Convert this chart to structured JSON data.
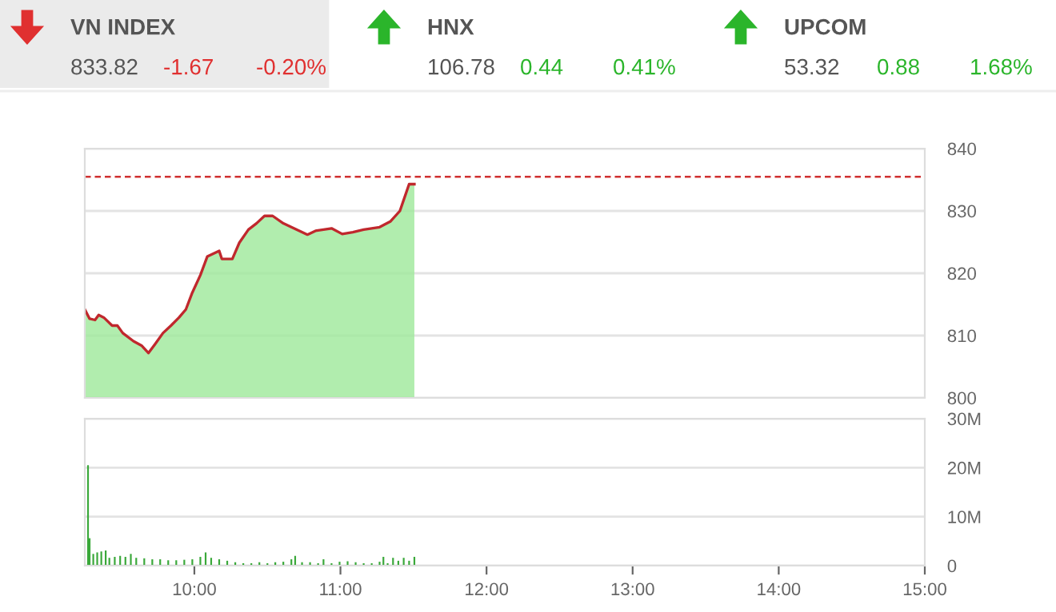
{
  "chart_data": [
    {
      "type": "other",
      "title": "VN INDEX",
      "annotations": [
        "833.82",
        "-1.67",
        "-0.20%"
      ],
      "colors": [
        "#555555",
        "#e03030",
        "#e03030"
      ],
      "color": "#ebebeb"
    },
    {
      "type": "other",
      "title": "HNX",
      "annotations": [
        "106.78",
        "0.44",
        "0.41%"
      ],
      "colors": [
        "#555555",
        "#2bb52b",
        "#2bb52b"
      ]
    },
    {
      "type": "other",
      "title": "UPCOM",
      "annotations": [
        "53.32",
        "0.88",
        "1.68%"
      ],
      "colors": [
        "#555555",
        "#2bb52b",
        "#2bb52b"
      ]
    },
    {
      "type": "area",
      "xlim": [
        9.25,
        15
      ],
      "ylim": [
        800,
        840
      ],
      "yticks": [
        800,
        810,
        820,
        830,
        840
      ],
      "grid": "y",
      "tick_labels": "y",
      "ref_lines": [
        {
          "axis": "y",
          "value": 835.49,
          "color": "#d03030",
          "line_style": "dashed"
        }
      ],
      "series": [
        {
          "color": "#9ee89a",
          "x": [
            9.25,
            9.283,
            9.32,
            9.345,
            9.38,
            9.437,
            9.473,
            9.51,
            9.583,
            9.638,
            9.686,
            9.73,
            9.785,
            9.84,
            9.895,
            9.942,
            9.986,
            10.041,
            10.089,
            10.17,
            10.188,
            10.26,
            10.308,
            10.37,
            10.425,
            10.48,
            10.536,
            10.609,
            10.719,
            10.774,
            10.829,
            10.939,
            11.012,
            11.085,
            11.159,
            11.268,
            11.341,
            11.407,
            11.47,
            11.506
          ],
          "values": [
            814.2,
            812.7,
            812.5,
            813.3,
            812.9,
            811.6,
            811.6,
            810.4,
            809.1,
            808.4,
            807.2,
            808.6,
            810.4,
            811.6,
            812.9,
            814.2,
            816.9,
            819.7,
            822.7,
            823.6,
            822.3,
            822.3,
            824.9,
            827,
            828,
            829.2,
            829.2,
            828,
            826.8,
            826.2,
            826.8,
            827.2,
            826.3,
            826.6,
            827,
            827.4,
            828.3,
            830,
            834.3,
            834.3
          ]
        },
        {
          "type": "line",
          "color": "#c0282d",
          "x": [
            9.25,
            9.283,
            9.32,
            9.345,
            9.38,
            9.437,
            9.473,
            9.51,
            9.583,
            9.638,
            9.686,
            9.73,
            9.785,
            9.84,
            9.895,
            9.942,
            9.986,
            10.041,
            10.089,
            10.17,
            10.188,
            10.26,
            10.308,
            10.37,
            10.425,
            10.48,
            10.536,
            10.609,
            10.719,
            10.774,
            10.829,
            10.939,
            11.012,
            11.085,
            11.159,
            11.268,
            11.341,
            11.407,
            11.47,
            11.506
          ],
          "values": [
            814.2,
            812.7,
            812.5,
            813.3,
            812.9,
            811.6,
            811.6,
            810.4,
            809.1,
            808.4,
            807.2,
            808.6,
            810.4,
            811.6,
            812.9,
            814.2,
            816.9,
            819.7,
            822.7,
            823.6,
            822.3,
            822.3,
            824.9,
            827,
            828,
            829.2,
            829.2,
            828,
            826.8,
            826.2,
            826.8,
            827.2,
            826.3,
            826.6,
            827,
            827.4,
            828.3,
            830,
            834.3,
            834.3
          ]
        }
      ]
    },
    {
      "type": "bar",
      "xlim": [
        9.25,
        15
      ],
      "xticks": [
        {
          "value": 10,
          "label": "10:00"
        },
        {
          "value": 11,
          "label": "11:00"
        },
        {
          "value": 12,
          "label": "12:00"
        },
        {
          "value": 13,
          "label": "13:00"
        },
        {
          "value": 14,
          "label": "14:00"
        },
        {
          "value": 15,
          "label": "15:00"
        }
      ],
      "ylim": [
        0,
        30
      ],
      "yticks": [
        0,
        {
          "value": 10,
          "label": "10M"
        },
        {
          "value": 20,
          "label": "20M"
        },
        {
          "value": 30,
          "label": "30M"
        }
      ],
      "grid": "y",
      "series": [
        {
          "color": "#3aa83a",
          "x": [
            9.272,
            9.283,
            9.308,
            9.335,
            9.363,
            9.393,
            9.418,
            9.455,
            9.492,
            9.528,
            9.565,
            9.602,
            9.657,
            9.712,
            9.766,
            9.821,
            9.876,
            9.931,
            9.986,
            10.041,
            10.077,
            10.115,
            10.17,
            10.225,
            10.28,
            10.335,
            10.39,
            10.445,
            10.5,
            10.554,
            10.609,
            10.664,
            10.69,
            10.737,
            10.792,
            10.847,
            10.884,
            10.939,
            10.994,
            11.049,
            11.104,
            11.159,
            11.214,
            11.268,
            11.294,
            11.323,
            11.36,
            11.396,
            11.433,
            11.47,
            11.506
          ],
          "values": [
            20.5,
            5.6,
            2.4,
            2.7,
            2.9,
            3.1,
            1.6,
            1.8,
            2.0,
            1.8,
            2.4,
            1.6,
            1.5,
            1.3,
            1.3,
            1.1,
            1.1,
            1.2,
            1.3,
            1.8,
            2.7,
            1.6,
            1.3,
            1.0,
            0.7,
            0.5,
            0.5,
            0.7,
            0.5,
            0.7,
            0.8,
            1.3,
            2.0,
            0.7,
            0.7,
            0.5,
            1.3,
            0.5,
            0.8,
            0.9,
            0.7,
            0.5,
            0.5,
            0.8,
            1.8,
            0.5,
            1.6,
            1.0,
            1.6,
            1.0,
            1.8
          ]
        }
      ]
    }
  ]
}
